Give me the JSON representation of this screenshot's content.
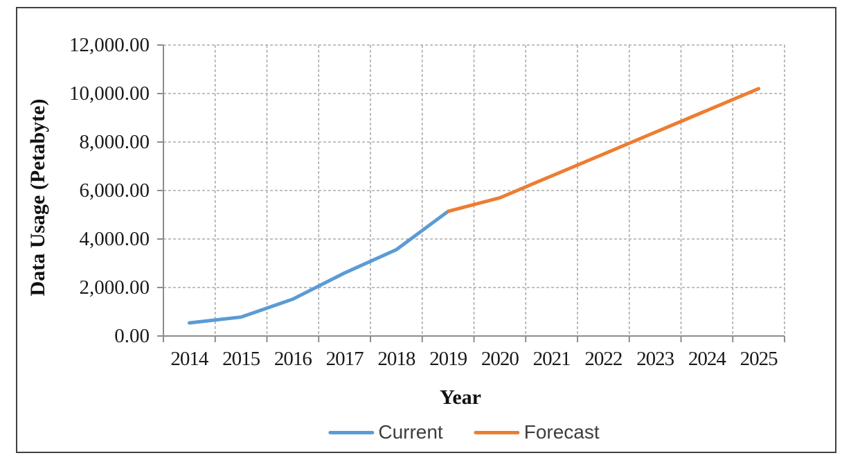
{
  "figure": {
    "background": "#ffffff",
    "border_color": "#404040"
  },
  "style": {
    "gridline_color": "#ababab",
    "axis_color": "#8c8c8c",
    "tick_label_color": "#1a1a1a",
    "series_line_width": 5
  },
  "chart_data": {
    "type": "line",
    "title": "",
    "xlabel": "Year",
    "ylabel": "Data Usage (Petabyte)",
    "x_categories": [
      "2014",
      "2015",
      "2016",
      "2017",
      "2018",
      "2019",
      "2020",
      "2021",
      "2022",
      "2023",
      "2024",
      "2025"
    ],
    "ylim": [
      0,
      12000
    ],
    "y_tick_step": 2000,
    "y_tick_labels": [
      "0.00",
      "2,000.00",
      "4,000.00",
      "6,000.00",
      "8,000.00",
      "10,000.00",
      "12,000.00"
    ],
    "grid": true,
    "legend_position": "bottom",
    "series": [
      {
        "name": "Current",
        "color": "#5B9BD5",
        "x": [
          "2014",
          "2015",
          "2016",
          "2017",
          "2018",
          "2019"
        ],
        "values": [
          540,
          780,
          1520,
          2600,
          3560,
          5140
        ]
      },
      {
        "name": "Forecast",
        "color": "#ED7D31",
        "x": [
          "2019",
          "2020",
          "2021",
          "2022",
          "2023",
          "2024",
          "2025"
        ],
        "values": [
          5140,
          5700,
          6600,
          7500,
          8400,
          9300,
          10200
        ]
      }
    ]
  }
}
